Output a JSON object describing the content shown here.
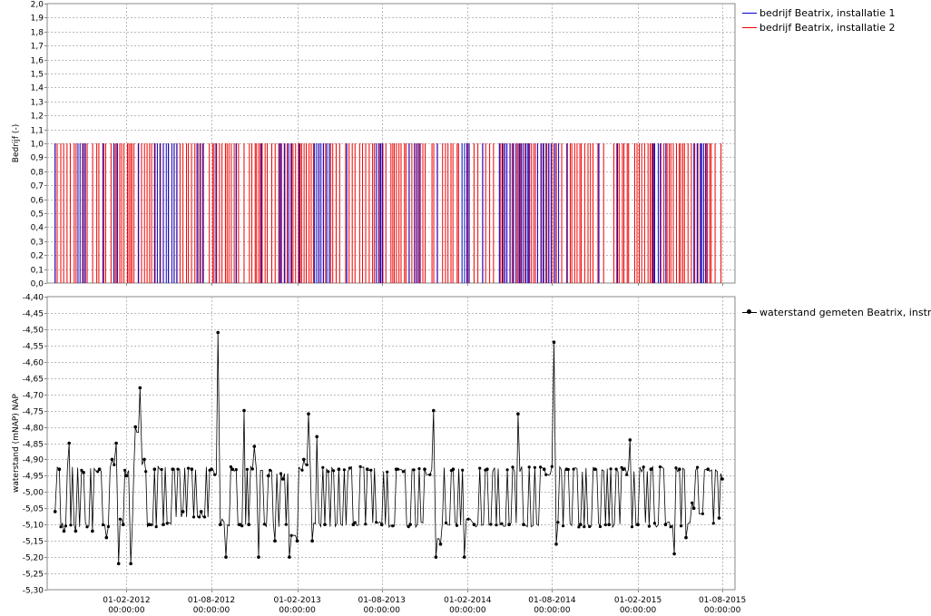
{
  "chart_data": [
    {
      "type": "bar",
      "ylabel": "Bedrijf (-)",
      "ylim": [
        0,
        2
      ],
      "ytick_labels": [
        "0,0",
        "0,1",
        "0,2",
        "0,3",
        "0,4",
        "0,5",
        "0,6",
        "0,7",
        "0,8",
        "0,9",
        "1,0",
        "1,1",
        "1,2",
        "1,3",
        "1,4",
        "1,5",
        "1,6",
        "1,7",
        "1,8",
        "1,9",
        "2,0"
      ],
      "grid": true,
      "legend_position": "right",
      "series": [
        {
          "name": "bedrijf Beatrix, installatie 1",
          "color": "#0000cc",
          "value": 1.0,
          "intervals": [
            [
              "2011-10-20",
              "2011-11-10"
            ],
            [
              "2012-01-05",
              "2012-01-15"
            ],
            [
              "2012-04-01",
              "2012-05-20"
            ],
            [
              "2012-07-01",
              "2012-07-20"
            ],
            [
              "2012-12-25",
              "2013-01-20"
            ],
            [
              "2013-03-10",
              "2013-04-15"
            ],
            [
              "2013-07-20",
              "2013-08-05"
            ],
            [
              "2013-10-10",
              "2013-10-25"
            ],
            [
              "2014-01-20",
              "2014-02-10"
            ],
            [
              "2014-04-10",
              "2014-06-20"
            ],
            [
              "2014-07-01",
              "2014-08-20"
            ],
            [
              "2015-03-05",
              "2015-03-25"
            ],
            [
              "2015-06-01",
              "2015-06-30"
            ]
          ]
        },
        {
          "name": "bedrijf Beatrix, installatie 2",
          "color": "#ee0000",
          "value": 1.0,
          "intervals": [
            [
              "2011-09-01",
              "2015-08-01"
            ]
          ]
        }
      ],
      "x_tick_labels": [
        [
          "01-02-2012",
          "00:00:00"
        ],
        [
          "01-08-2012",
          "00:00:00"
        ],
        [
          "01-02-2013",
          "00:00:00"
        ],
        [
          "01-08-2013",
          "00:00:00"
        ],
        [
          "01-02-2014",
          "00:00:00"
        ],
        [
          "01-08-2014",
          "00:00:00"
        ],
        [
          "01-02-2015",
          "00:00:00"
        ],
        [
          "01-08-2015",
          "00:00:00"
        ]
      ]
    },
    {
      "type": "line",
      "ylabel": "waterstand (mNAP)  NAP",
      "ylim": [
        -5.3,
        -4.4
      ],
      "ytick_labels": [
        "-5,30",
        "-5,25",
        "-5,20",
        "-5,15",
        "-5,10",
        "-5,05",
        "-5,00",
        "-4,95",
        "-4,90",
        "-4,85",
        "-4,80",
        "-4,75",
        "-4,70",
        "-4,65",
        "-4,60",
        "-4,55",
        "-4,50",
        "-4,45",
        "-4,40"
      ],
      "grid": true,
      "legend_position": "right",
      "series": [
        {
          "name": "waterstand gemeten Beatrix, instroom",
          "color": "#000000",
          "points": [
            [
              "2011-09-01",
              -5.06
            ],
            [
              "2011-09-10",
              -4.93
            ],
            [
              "2011-09-20",
              -5.12
            ],
            [
              "2011-10-01",
              -4.85
            ],
            [
              "2011-10-15",
              -5.12
            ],
            [
              "2011-11-01",
              -4.94
            ],
            [
              "2011-11-20",
              -5.12
            ],
            [
              "2011-12-05",
              -4.93
            ],
            [
              "2011-12-20",
              -5.14
            ],
            [
              "2012-01-01",
              -4.9
            ],
            [
              "2012-01-10",
              -4.85
            ],
            [
              "2012-01-15",
              -5.22
            ],
            [
              "2012-01-25",
              -5.1
            ],
            [
              "2012-02-01",
              -4.95
            ],
            [
              "2012-02-10",
              -5.22
            ],
            [
              "2012-02-20",
              -4.8
            ],
            [
              "2012-03-01",
              -4.68
            ],
            [
              "2012-03-10",
              -4.9
            ],
            [
              "2012-03-20",
              -5.1
            ],
            [
              "2012-04-01",
              -4.93
            ],
            [
              "2012-04-20",
              -5.1
            ],
            [
              "2012-05-10",
              -4.93
            ],
            [
              "2012-06-01",
              -5.06
            ],
            [
              "2012-06-20",
              -4.93
            ],
            [
              "2012-07-10",
              -5.06
            ],
            [
              "2012-08-01",
              -4.93
            ],
            [
              "2012-08-15",
              -4.51
            ],
            [
              "2012-08-20",
              -5.1
            ],
            [
              "2012-09-01",
              -5.2
            ],
            [
              "2012-09-15",
              -4.93
            ],
            [
              "2012-10-01",
              -5.1
            ],
            [
              "2012-10-10",
              -4.75
            ],
            [
              "2012-10-20",
              -5.1
            ],
            [
              "2012-11-01",
              -4.86
            ],
            [
              "2012-11-10",
              -5.2
            ],
            [
              "2012-12-01",
              -4.95
            ],
            [
              "2012-12-15",
              -5.15
            ],
            [
              "2013-01-01",
              -4.96
            ],
            [
              "2013-01-15",
              -5.2
            ],
            [
              "2013-02-01",
              -5.15
            ],
            [
              "2013-02-15",
              -4.9
            ],
            [
              "2013-02-25",
              -4.76
            ],
            [
              "2013-03-05",
              -5.15
            ],
            [
              "2013-03-15",
              -4.83
            ],
            [
              "2013-04-01",
              -5.1
            ],
            [
              "2013-05-01",
              -4.93
            ],
            [
              "2013-06-01",
              -5.1
            ],
            [
              "2013-07-01",
              -4.93
            ],
            [
              "2013-08-01",
              -5.1
            ],
            [
              "2013-09-01",
              -4.93
            ],
            [
              "2013-10-01",
              -5.1
            ],
            [
              "2013-11-01",
              -4.93
            ],
            [
              "2013-11-20",
              -4.75
            ],
            [
              "2013-11-25",
              -5.2
            ],
            [
              "2013-12-05",
              -5.16
            ],
            [
              "2014-01-01",
              -4.93
            ],
            [
              "2014-01-25",
              -5.2
            ],
            [
              "2014-02-15",
              -5.1
            ],
            [
              "2014-03-15",
              -4.93
            ],
            [
              "2014-05-01",
              -5.1
            ],
            [
              "2014-05-20",
              -4.76
            ],
            [
              "2014-06-01",
              -5.1
            ],
            [
              "2014-07-15",
              -4.93
            ],
            [
              "2014-08-05",
              -4.54
            ],
            [
              "2014-08-10",
              -5.16
            ],
            [
              "2014-09-01",
              -4.93
            ],
            [
              "2014-10-01",
              -5.1
            ],
            [
              "2014-11-01",
              -4.93
            ],
            [
              "2014-12-01",
              -5.1
            ],
            [
              "2015-01-01",
              -4.93
            ],
            [
              "2015-01-15",
              -4.84
            ],
            [
              "2015-02-01",
              -5.1
            ],
            [
              "2015-03-01",
              -4.93
            ],
            [
              "2015-04-01",
              -5.1
            ],
            [
              "2015-04-20",
              -5.19
            ],
            [
              "2015-05-01",
              -4.93
            ],
            [
              "2015-05-15",
              -5.14
            ],
            [
              "2015-06-01",
              -5.05
            ],
            [
              "2015-07-01",
              -4.93
            ],
            [
              "2015-07-25",
              -5.08
            ],
            [
              "2015-08-01",
              -4.96
            ]
          ]
        }
      ],
      "x_tick_labels": [
        [
          "01-02-2012",
          "00:00:00"
        ],
        [
          "01-08-2012",
          "00:00:00"
        ],
        [
          "01-02-2013",
          "00:00:00"
        ],
        [
          "01-08-2013",
          "00:00:00"
        ],
        [
          "01-02-2014",
          "00:00:00"
        ],
        [
          "01-08-2014",
          "00:00:00"
        ],
        [
          "01-02-2015",
          "00:00:00"
        ],
        [
          "01-08-2015",
          "00:00:00"
        ]
      ]
    }
  ]
}
